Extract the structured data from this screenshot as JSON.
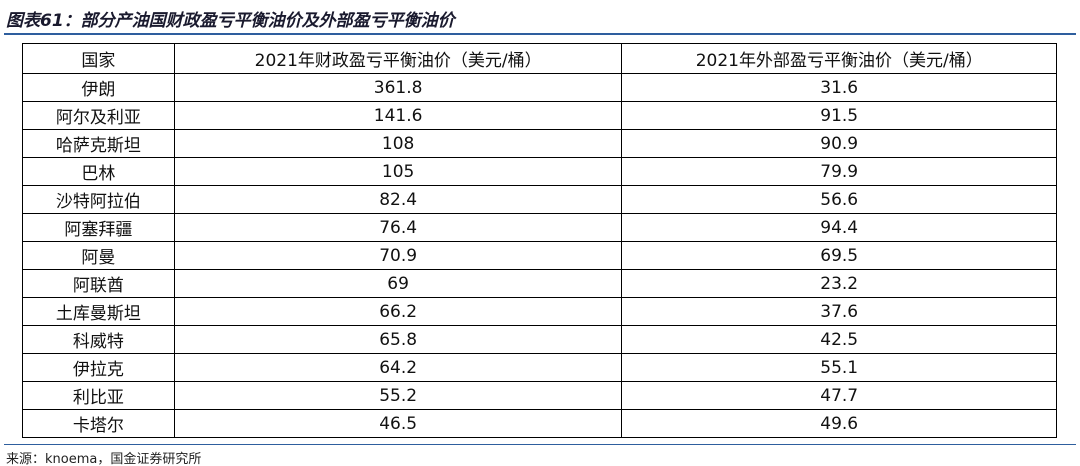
{
  "header": {
    "title": "图表61：部分产油国财政盈亏平衡油价及外部盈亏平衡油价"
  },
  "table": {
    "columns": [
      "国家",
      "2021年财政盈亏平衡油价（美元/桶）",
      "2021年外部盈亏平衡油价（美元/桶）"
    ],
    "rows": [
      [
        "伊朗",
        "361.8",
        "31.6"
      ],
      [
        "阿尔及利亚",
        "141.6",
        "91.5"
      ],
      [
        "哈萨克斯坦",
        "108",
        "90.9"
      ],
      [
        "巴林",
        "105",
        "79.9"
      ],
      [
        "沙特阿拉伯",
        "82.4",
        "56.6"
      ],
      [
        "阿塞拜疆",
        "76.4",
        "94.4"
      ],
      [
        "阿曼",
        "70.9",
        "69.5"
      ],
      [
        "阿联酋",
        "69",
        "23.2"
      ],
      [
        "土库曼斯坦",
        "66.2",
        "37.6"
      ],
      [
        "科威特",
        "65.8",
        "42.5"
      ],
      [
        "伊拉克",
        "64.2",
        "55.1"
      ],
      [
        "利比亚",
        "55.2",
        "47.7"
      ],
      [
        "卡塔尔",
        "46.5",
        "49.6"
      ]
    ]
  },
  "footer": {
    "source": "来源：knoema，国金证券研究所"
  }
}
